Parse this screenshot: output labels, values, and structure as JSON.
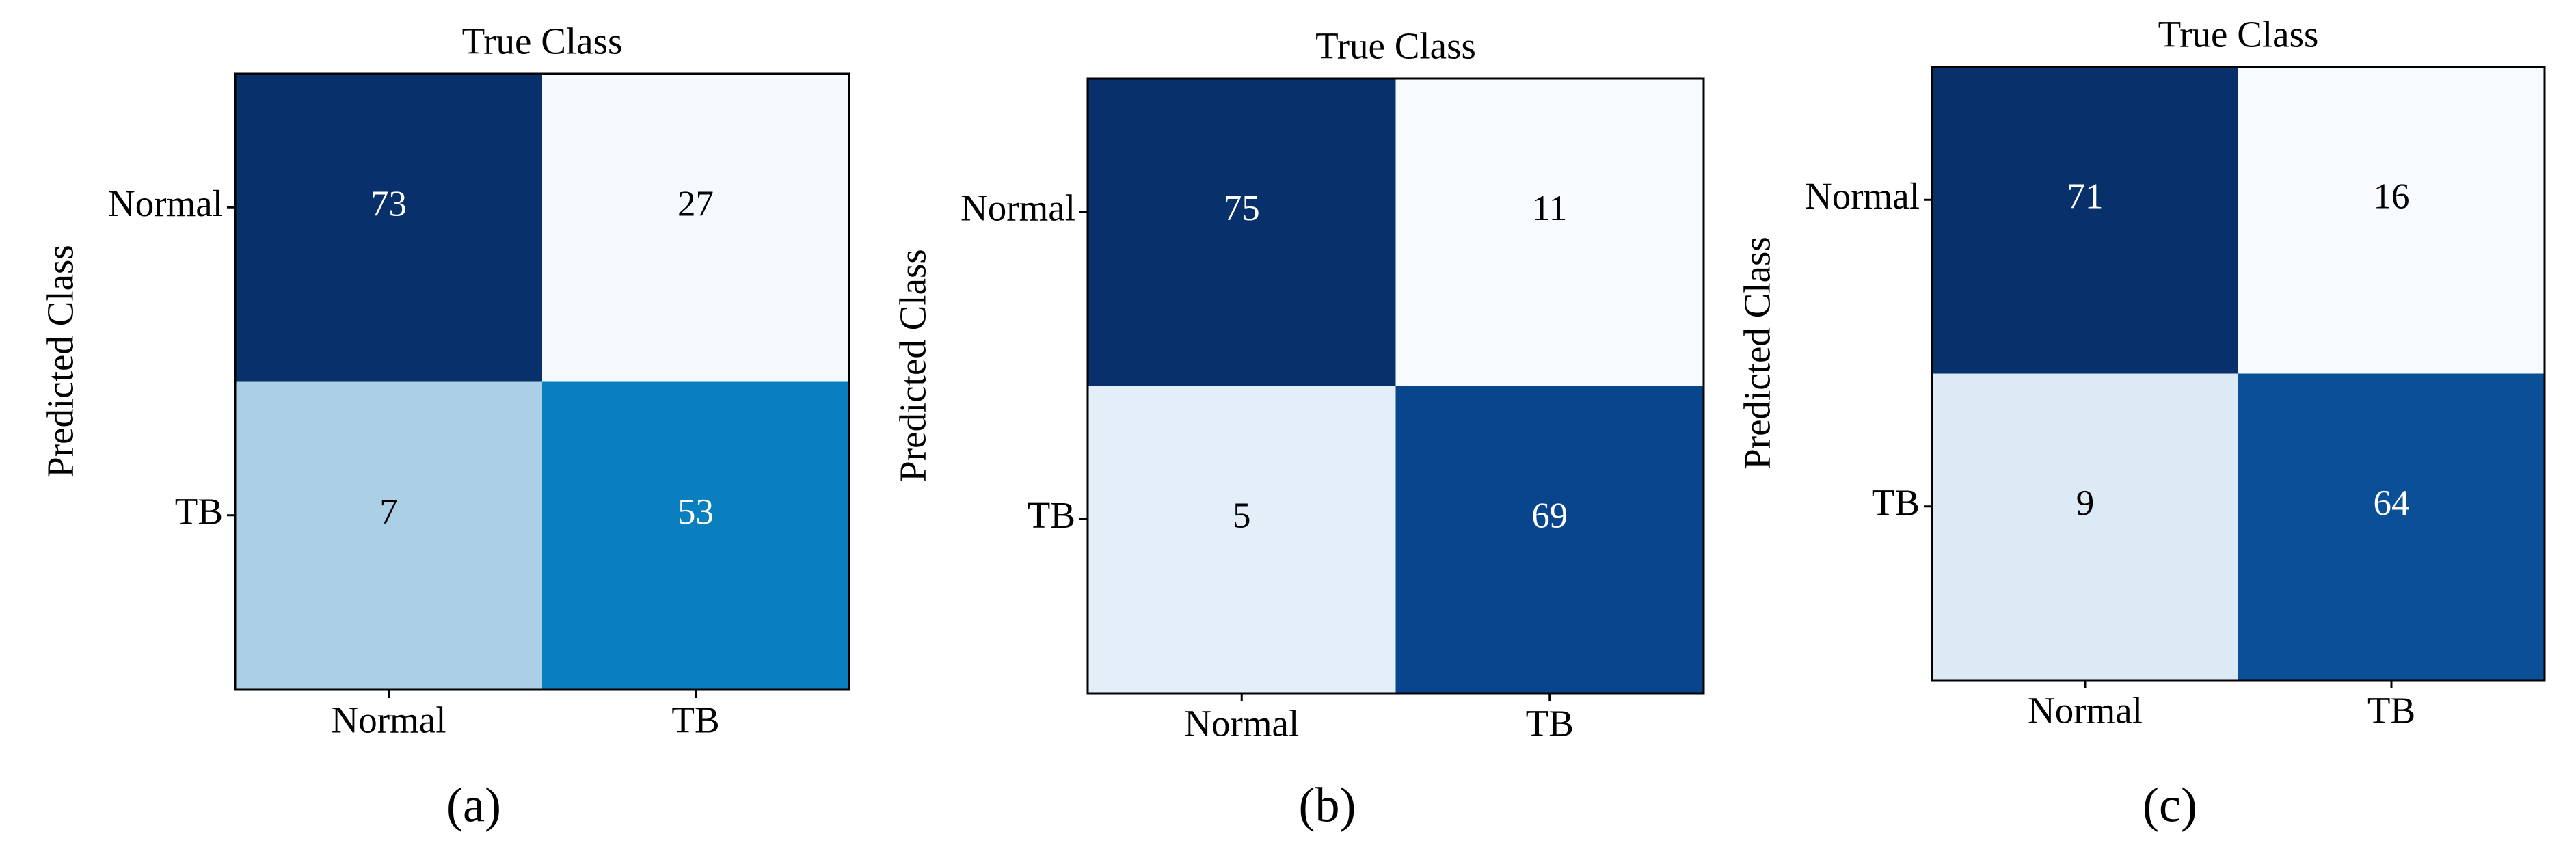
{
  "chart_data": [
    {
      "type": "heatmap",
      "title": "True Class",
      "ylabel": "Predicted Class",
      "caption": "(a)",
      "x_categories": [
        "Normal",
        "TB"
      ],
      "y_categories": [
        "Normal",
        "TB"
      ],
      "values": [
        [
          73,
          27
        ],
        [
          7,
          53
        ]
      ],
      "colors": [
        [
          "#08306b",
          "#f5fafe"
        ],
        [
          "#abd0e6",
          "#0a7fbf"
        ]
      ]
    },
    {
      "type": "heatmap",
      "title": "True Class",
      "ylabel": "Predicted Class",
      "caption": "(b)",
      "x_categories": [
        "Normal",
        "TB"
      ],
      "y_categories": [
        "Normal",
        "TB"
      ],
      "values": [
        [
          75,
          11
        ],
        [
          5,
          69
        ]
      ],
      "colors": [
        [
          "#08306b",
          "#f7fbff"
        ],
        [
          "#e3eef9",
          "#08458d"
        ]
      ]
    },
    {
      "type": "heatmap",
      "title": "True Class",
      "ylabel": "Predicted Class",
      "caption": "(c)",
      "x_categories": [
        "Normal",
        "TB"
      ],
      "y_categories": [
        "Normal",
        "TB"
      ],
      "values": [
        [
          71,
          16
        ],
        [
          9,
          64
        ]
      ],
      "colors": [
        [
          "#08306b",
          "#f7fbff"
        ],
        [
          "#dceaf6",
          "#0b4f97"
        ]
      ]
    }
  ]
}
